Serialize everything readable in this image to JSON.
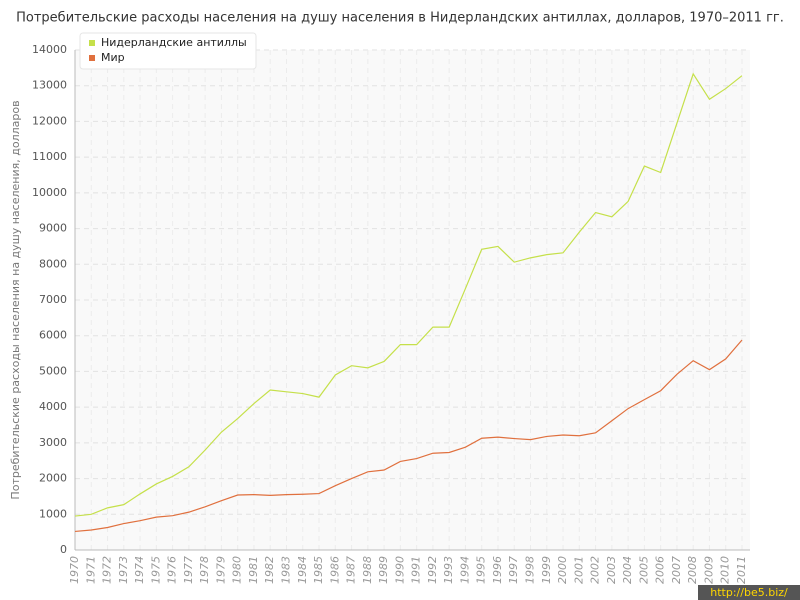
{
  "chart_data": {
    "type": "line",
    "title": "Потребительские расходы населения на душу населения в Нидерландских антиллах, долларов, 1970–2011 гг.",
    "y_label": "Потребительские расходы населения на душу населения, долларов",
    "watermark": "http://be5.biz/",
    "x": [
      1970,
      1971,
      1972,
      1973,
      1974,
      1975,
      1976,
      1977,
      1978,
      1979,
      1980,
      1981,
      1982,
      1983,
      1984,
      1985,
      1986,
      1987,
      1988,
      1989,
      1990,
      1991,
      1992,
      1993,
      1994,
      1995,
      1996,
      1997,
      1998,
      1999,
      2000,
      2001,
      2002,
      2003,
      2004,
      2005,
      2006,
      2007,
      2008,
      2009,
      2010,
      2011
    ],
    "xlim": [
      1970,
      2011
    ],
    "ylim": [
      0,
      14000
    ],
    "yticks": [
      0,
      1000,
      2000,
      3000,
      4000,
      5000,
      6000,
      7000,
      8000,
      9000,
      10000,
      11000,
      12000,
      13000,
      14000
    ],
    "grid": true,
    "legend": "top-left",
    "series": [
      {
        "name": "Нидерландские антиллы",
        "color": "#c5e04a",
        "values": [
          950,
          1000,
          1180,
          1270,
          1570,
          1850,
          2060,
          2330,
          2800,
          3300,
          3680,
          4100,
          4480,
          4430,
          4380,
          4280,
          4900,
          5160,
          5100,
          5280,
          5750,
          5750,
          6240,
          6240,
          7320,
          8420,
          8500,
          8060,
          8180,
          8270,
          8320,
          8900,
          9450,
          9330,
          9760,
          10750,
          10570,
          11950,
          13330,
          12620,
          12920,
          13280
        ]
      },
      {
        "name": "Мир",
        "color": "#e0703e",
        "values": [
          520,
          560,
          630,
          740,
          820,
          920,
          960,
          1060,
          1210,
          1380,
          1540,
          1550,
          1530,
          1550,
          1560,
          1580,
          1800,
          2000,
          2190,
          2240,
          2480,
          2560,
          2710,
          2730,
          2880,
          3130,
          3160,
          3120,
          3090,
          3180,
          3220,
          3200,
          3280,
          3620,
          3960,
          4210,
          4460,
          4920,
          5300,
          5050,
          5350,
          5880
        ]
      }
    ]
  }
}
